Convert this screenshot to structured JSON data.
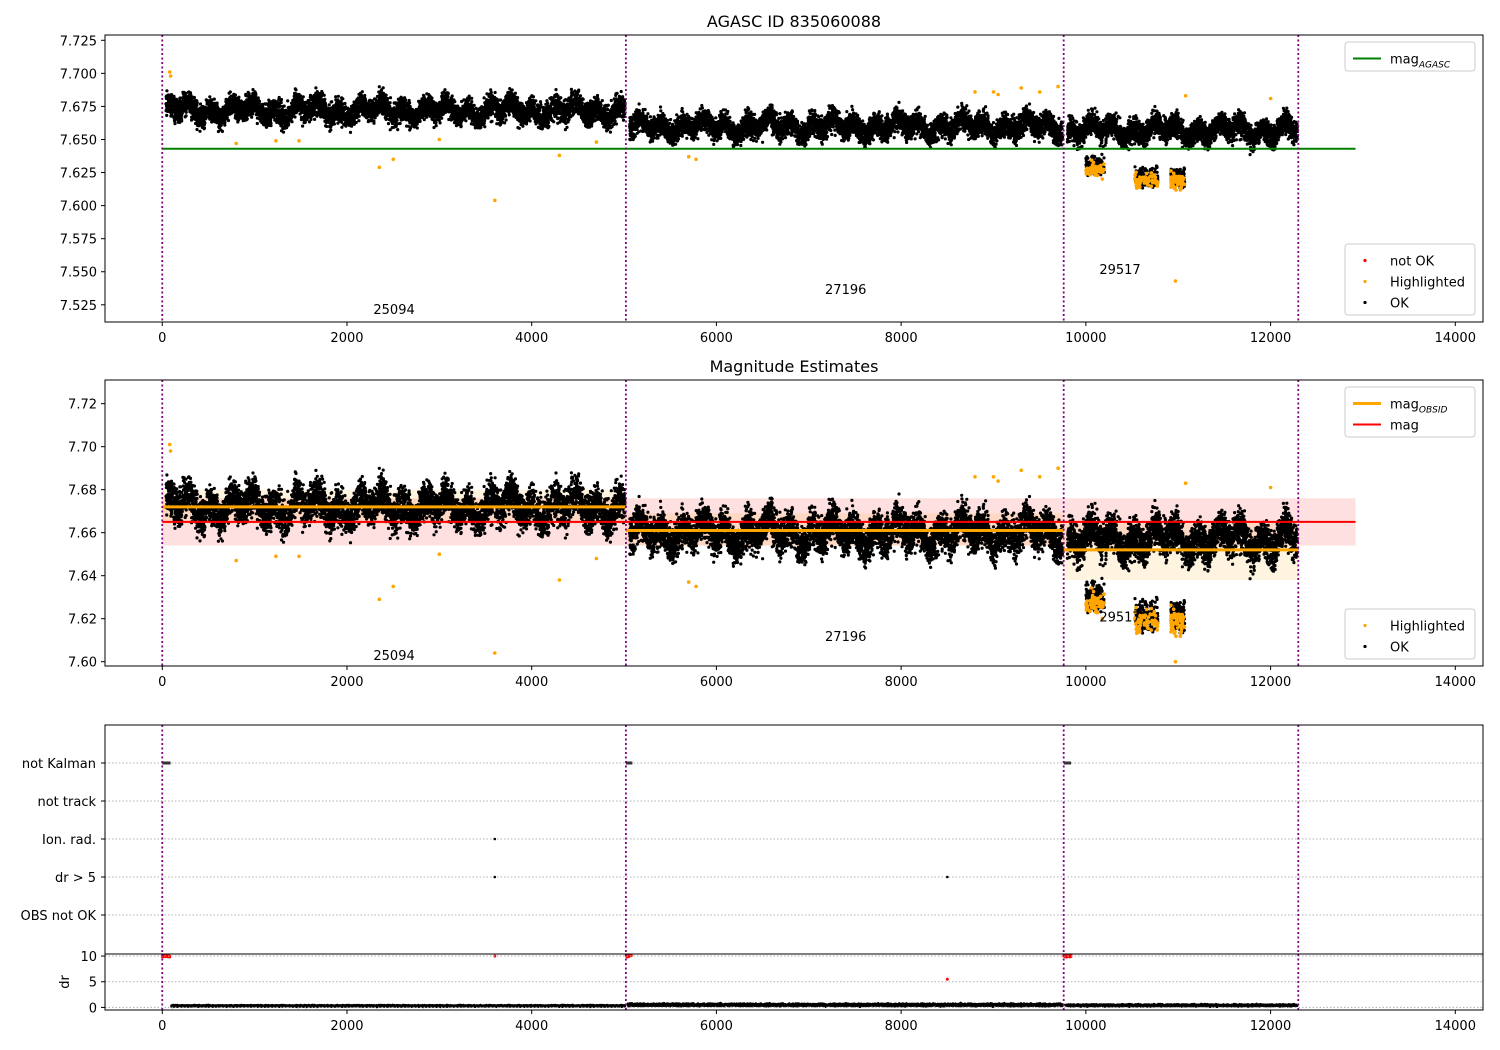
{
  "figure": {
    "panel1_title": "AGASC ID 835060088",
    "panel2_title": "Magnitude Estimates"
  },
  "chart_data": [
    {
      "type": "scatter",
      "title": "AGASC ID 835060088",
      "xlim": [
        -620,
        14300
      ],
      "ylim": [
        7.512,
        7.729
      ],
      "xticks": [
        0,
        2000,
        4000,
        6000,
        8000,
        10000,
        12000,
        14000
      ],
      "yticks": [
        7.525,
        7.55,
        7.575,
        7.6,
        7.625,
        7.65,
        7.675,
        7.7,
        7.725
      ],
      "ytick_decimals": 3,
      "obsid_boundaries": [
        0,
        5020,
        9760,
        12300
      ],
      "obsid_labels": [
        {
          "text": "25094",
          "x": 2510,
          "y": 7.522
        },
        {
          "text": "27196",
          "x": 7400,
          "y": 7.537
        },
        {
          "text": "29517",
          "x": 10370,
          "y": 7.552
        }
      ],
      "reference_lines": [
        {
          "name": "mag_AGASC",
          "y": 7.643,
          "x_range": [
            0,
            12920
          ],
          "color": "#008000"
        }
      ],
      "segments": [
        {
          "x": [
            0,
            5020
          ],
          "mean": 7.672,
          "spread": 0.008
        },
        {
          "x": [
            5020,
            9760
          ],
          "mean": 7.66,
          "spread": 0.008
        },
        {
          "x": [
            9760,
            12300
          ],
          "mean": 7.657,
          "spread": 0.008
        }
      ],
      "dips": [
        {
          "x": [
            10000,
            10200
          ],
          "y": 7.63
        },
        {
          "x": [
            10530,
            10780
          ],
          "y": 7.622
        },
        {
          "x": [
            10920,
            11070
          ],
          "y": 7.621
        }
      ],
      "highlighted_points": [
        [
          80,
          7.701
        ],
        [
          90,
          7.698
        ],
        [
          800,
          7.647
        ],
        [
          1230,
          7.649
        ],
        [
          1480,
          7.649
        ],
        [
          2350,
          7.629
        ],
        [
          2500,
          7.635
        ],
        [
          3000,
          7.65
        ],
        [
          3600,
          7.604
        ],
        [
          4300,
          7.638
        ],
        [
          4700,
          7.648
        ],
        [
          5700,
          7.637
        ],
        [
          5780,
          7.635
        ],
        [
          8800,
          7.686
        ],
        [
          9000,
          7.686
        ],
        [
          9050,
          7.684
        ],
        [
          9300,
          7.689
        ],
        [
          9500,
          7.686
        ],
        [
          9700,
          7.69
        ],
        [
          10970,
          7.543
        ],
        [
          11080,
          7.683
        ],
        [
          12000,
          7.681
        ]
      ],
      "legends": [
        {
          "position": "upper right",
          "entries": [
            {
              "label": "mag",
              "sub": "AGASC",
              "kind": "line",
              "color": "#008000"
            }
          ]
        },
        {
          "position": "lower right",
          "entries": [
            {
              "label": "not OK",
              "kind": "dot",
              "color": "#ff0000"
            },
            {
              "label": "Highlighted",
              "kind": "dot",
              "color": "#ffa500"
            },
            {
              "label": "OK",
              "kind": "dot",
              "color": "#000000"
            }
          ]
        }
      ]
    },
    {
      "type": "scatter",
      "title": "Magnitude Estimates",
      "xlim": [
        -620,
        14300
      ],
      "ylim": [
        7.598,
        7.731
      ],
      "xticks": [
        0,
        2000,
        4000,
        6000,
        8000,
        10000,
        12000,
        14000
      ],
      "yticks": [
        7.6,
        7.62,
        7.64,
        7.66,
        7.68,
        7.7,
        7.72
      ],
      "ytick_decimals": 2,
      "obsid_boundaries": [
        0,
        5020,
        9760,
        12300
      ],
      "obsid_labels": [
        {
          "text": "25094",
          "x": 2510,
          "y": 7.603
        },
        {
          "text": "27196",
          "x": 7400,
          "y": 7.612
        },
        {
          "text": "29517",
          "x": 10370,
          "y": 7.621
        }
      ],
      "mag_band": {
        "y": [
          7.654,
          7.676
        ],
        "x_range": [
          0,
          12920
        ],
        "color": "#ff0000",
        "alpha": 0.12
      },
      "mag_line": {
        "y": 7.665,
        "x_range": [
          0,
          12920
        ],
        "color": "#ff0000"
      },
      "obsid_mags": [
        {
          "x": [
            0,
            5020
          ],
          "y": 7.672,
          "band": [
            7.664,
            7.68
          ]
        },
        {
          "x": [
            5020,
            9760
          ],
          "y": 7.661,
          "band": [
            7.654,
            7.669
          ]
        },
        {
          "x": [
            9760,
            12300
          ],
          "y": 7.652,
          "band": [
            7.638,
            7.665
          ]
        }
      ],
      "segments": [
        {
          "x": [
            0,
            5020
          ],
          "mean": 7.672,
          "spread": 0.008
        },
        {
          "x": [
            5020,
            9760
          ],
          "mean": 7.66,
          "spread": 0.008
        },
        {
          "x": [
            9760,
            12300
          ],
          "mean": 7.657,
          "spread": 0.008
        }
      ],
      "dips": [
        {
          "x": [
            10000,
            10200
          ],
          "y": 7.63
        },
        {
          "x": [
            10530,
            10780
          ],
          "y": 7.622
        },
        {
          "x": [
            10920,
            11070
          ],
          "y": 7.621
        }
      ],
      "highlighted_points": [
        [
          80,
          7.701
        ],
        [
          90,
          7.698
        ],
        [
          800,
          7.647
        ],
        [
          1230,
          7.649
        ],
        [
          1480,
          7.649
        ],
        [
          2350,
          7.629
        ],
        [
          2500,
          7.635
        ],
        [
          3000,
          7.65
        ],
        [
          3600,
          7.604
        ],
        [
          4300,
          7.638
        ],
        [
          4700,
          7.648
        ],
        [
          5700,
          7.637
        ],
        [
          5780,
          7.635
        ],
        [
          8800,
          7.686
        ],
        [
          9000,
          7.686
        ],
        [
          9050,
          7.684
        ],
        [
          9300,
          7.689
        ],
        [
          9500,
          7.686
        ],
        [
          9700,
          7.69
        ],
        [
          10970,
          7.6
        ],
        [
          11080,
          7.683
        ],
        [
          12000,
          7.681
        ]
      ],
      "legends": [
        {
          "position": "upper right",
          "entries": [
            {
              "label": "mag",
              "sub": "OBSID",
              "kind": "line",
              "color": "#ffa500"
            },
            {
              "label": "mag",
              "kind": "line",
              "color": "#ff0000"
            }
          ]
        },
        {
          "position": "lower right",
          "entries": [
            {
              "label": "Highlighted",
              "kind": "dot",
              "color": "#ffa500"
            },
            {
              "label": "OK",
              "kind": "dot",
              "color": "#000000"
            }
          ]
        }
      ]
    },
    {
      "type": "scatter",
      "xlim": [
        -620,
        14300
      ],
      "categories": [
        "not Kalman",
        "not track",
        "Ion. rad.",
        "dr > 5",
        "OBS not OK"
      ],
      "obsid_boundaries": [
        0,
        5020,
        9760,
        12300
      ],
      "flag_points": [
        {
          "category": "not Kalman",
          "x_ranges": [
            [
              0,
              90
            ],
            [
              5020,
              5090
            ],
            [
              9760,
              9840
            ]
          ]
        },
        {
          "category": "Ion. rad.",
          "x": [
            3600
          ]
        },
        {
          "category": "dr > 5",
          "x": [
            3600,
            8500
          ]
        }
      ]
    },
    {
      "type": "scatter",
      "ylabel": "dr",
      "xlim": [
        -620,
        14300
      ],
      "ylim": [
        -0.5,
        10.4
      ],
      "xticks": [
        0,
        2000,
        4000,
        6000,
        8000,
        10000,
        12000,
        14000
      ],
      "yticks": [
        0,
        5,
        10
      ],
      "ytick_decimals": 0,
      "obsid_boundaries": [
        0,
        5020,
        9760,
        12300
      ],
      "dr_baseline": [
        {
          "x": [
            80,
            5020
          ],
          "mean": 0.3
        },
        {
          "x": [
            5020,
            9760
          ],
          "mean": 0.5
        },
        {
          "x": [
            9760,
            12300
          ],
          "mean": 0.4
        }
      ],
      "red_points": [
        [
          3600,
          10
        ],
        [
          8500,
          5.5
        ]
      ],
      "red_clusters": [
        [
          0,
          80
        ],
        [
          5020,
          5080
        ],
        [
          9760,
          9840
        ]
      ]
    }
  ]
}
